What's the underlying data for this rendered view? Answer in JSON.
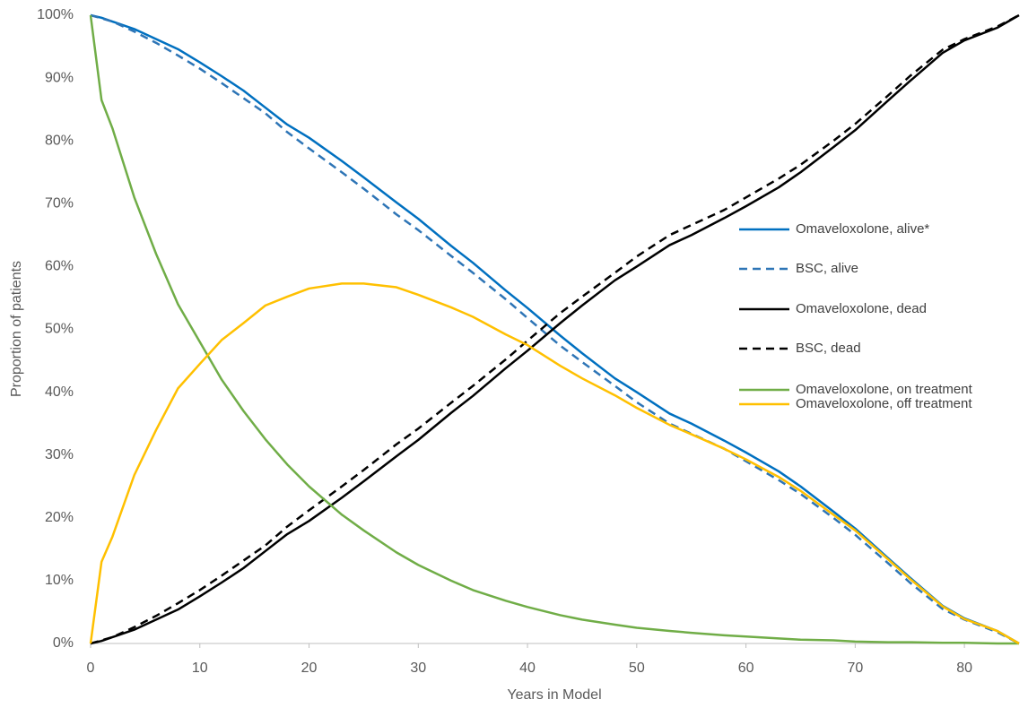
{
  "chart_data": {
    "type": "line",
    "xlabel": "Years in Model",
    "ylabel": "Proportion of patients",
    "xlim": [
      0,
      85
    ],
    "xticks": [
      0,
      10,
      20,
      30,
      40,
      50,
      60,
      70,
      80
    ],
    "ylim": [
      0,
      100
    ],
    "yticks": [
      {
        "value": 0,
        "label": "0%"
      },
      {
        "value": 10,
        "label": "10%"
      },
      {
        "value": 20,
        "label": "20%"
      },
      {
        "value": 30,
        "label": "30%"
      },
      {
        "value": 40,
        "label": "40%"
      },
      {
        "value": 50,
        "label": "50%"
      },
      {
        "value": 60,
        "label": "60%"
      },
      {
        "value": 70,
        "label": "70%"
      },
      {
        "value": 80,
        "label": "80%"
      },
      {
        "value": 90,
        "label": "90%"
      },
      {
        "value": 100,
        "label": "100%"
      }
    ],
    "grid": false,
    "x": [
      0,
      1,
      2,
      4,
      6,
      8,
      10,
      12,
      14,
      16,
      18,
      20,
      23,
      25,
      28,
      30,
      33,
      35,
      38,
      40,
      43,
      45,
      48,
      50,
      53,
      55,
      58,
      60,
      63,
      65,
      68,
      70,
      73,
      75,
      78,
      80,
      83,
      85
    ],
    "series": [
      {
        "name": "Omaveloxolone, alive*",
        "color": "#0070c0",
        "dashed": false,
        "values": [
          100,
          99.6,
          99,
          97.8,
          96.2,
          94.6,
          92.5,
          90.3,
          88,
          85.3,
          82.6,
          80.5,
          76.8,
          74.2,
          70.2,
          67.6,
          63.3,
          60.6,
          56.2,
          53.4,
          49,
          46.2,
          42.2,
          40,
          36.6,
          35,
          32.3,
          30.4,
          27.4,
          25,
          21,
          18.3,
          13.6,
          10.5,
          6,
          4,
          2,
          0
        ]
      },
      {
        "name": "BSC, alive",
        "color": "#2e75b6",
        "dashed": true,
        "values": [
          100,
          99.5,
          99,
          97.4,
          95.6,
          93.6,
          91.5,
          89.2,
          86.8,
          84.4,
          81.4,
          78.8,
          75,
          72.4,
          68.3,
          65.8,
          61.7,
          59,
          54.8,
          51.8,
          47.4,
          44.8,
          41,
          38.4,
          35,
          33.4,
          31,
          29,
          26,
          23.8,
          20,
          17.3,
          12.8,
          9.7,
          5.5,
          3.8,
          1.8,
          0
        ]
      },
      {
        "name": "Omaveloxolone, dead",
        "color": "#000000",
        "dashed": false,
        "values": [
          0,
          0.4,
          1,
          2.2,
          3.8,
          5.4,
          7.5,
          9.7,
          12,
          14.7,
          17.4,
          19.5,
          23.2,
          25.8,
          29.8,
          32.4,
          36.7,
          39.4,
          43.8,
          46.6,
          51,
          53.8,
          57.8,
          60,
          63.4,
          65,
          67.7,
          69.6,
          72.6,
          75,
          79,
          81.7,
          86.4,
          89.5,
          94,
          96,
          98,
          100
        ]
      },
      {
        "name": "BSC, dead",
        "color": "#000000",
        "dashed": true,
        "values": [
          0,
          0.5,
          1,
          2.6,
          4.4,
          6.4,
          8.5,
          10.8,
          13.2,
          15.6,
          18.6,
          21.2,
          25,
          27.6,
          31.7,
          34.2,
          38.3,
          41,
          45.2,
          48.2,
          52.6,
          55.2,
          59,
          61.6,
          65,
          66.6,
          69,
          71,
          74,
          76.2,
          80,
          82.7,
          87.2,
          90.3,
          94.5,
          96.2,
          98.2,
          100
        ]
      },
      {
        "name": "Omaveloxolone, on treatment",
        "color": "#70ad47",
        "dashed": false,
        "values": [
          100,
          86.5,
          82,
          71,
          62,
          54,
          48,
          42,
          37,
          32.5,
          28.5,
          25,
          20.5,
          18,
          14.5,
          12.5,
          10,
          8.5,
          6.8,
          5.8,
          4.5,
          3.8,
          3,
          2.5,
          2,
          1.7,
          1.3,
          1.1,
          0.8,
          0.6,
          0.5,
          0.3,
          0.2,
          0.2,
          0.1,
          0.1,
          0,
          0
        ]
      },
      {
        "name": "Omaveloxolone, off treatment",
        "color": "#ffc000",
        "dashed": false,
        "values": [
          0,
          13,
          17,
          26.8,
          34,
          40.6,
          44.5,
          48.3,
          51,
          53.8,
          55.2,
          56.5,
          57.3,
          57.3,
          56.7,
          55.5,
          53.5,
          52,
          49.2,
          47.5,
          44.2,
          42.2,
          39.5,
          37.5,
          34.8,
          33.3,
          31,
          29.3,
          26.5,
          24.3,
          20.5,
          18,
          13.4,
          10.3,
          5.9,
          3.9,
          2,
          0
        ]
      }
    ]
  }
}
